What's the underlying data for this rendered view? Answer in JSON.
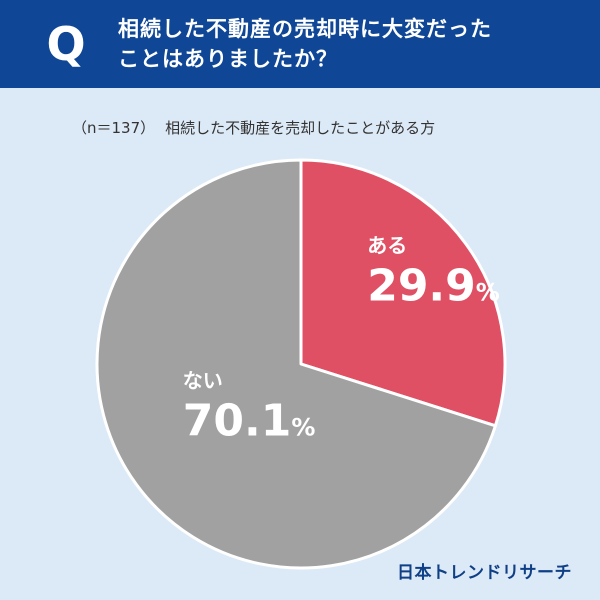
{
  "header": {
    "q_letter": "Q",
    "question_line1": "相続した不動産の売却時に大変だった",
    "question_line2": "ことはありましたか？"
  },
  "caption": {
    "n_label": "（n＝137）",
    "subject": "相続した不動産を売却したことがある方"
  },
  "brand": "日本トレンドリサーチ",
  "colors": {
    "header_bg": "#0f4796",
    "page_bg": "#dce9f6",
    "slice_yes": "#e05065",
    "slice_no": "#a1a1a1",
    "label_text": "#ffffff"
  },
  "chart_data": {
    "type": "pie",
    "title": "",
    "unit": "%",
    "slices": [
      {
        "label": "ある",
        "value": 29.9,
        "value_text": "29.9",
        "color": "#e05065"
      },
      {
        "label": "ない",
        "value": 70.1,
        "value_text": "70.1",
        "color": "#a1a1a1"
      }
    ],
    "start": "12 o'clock",
    "direction": "clockwise"
  }
}
